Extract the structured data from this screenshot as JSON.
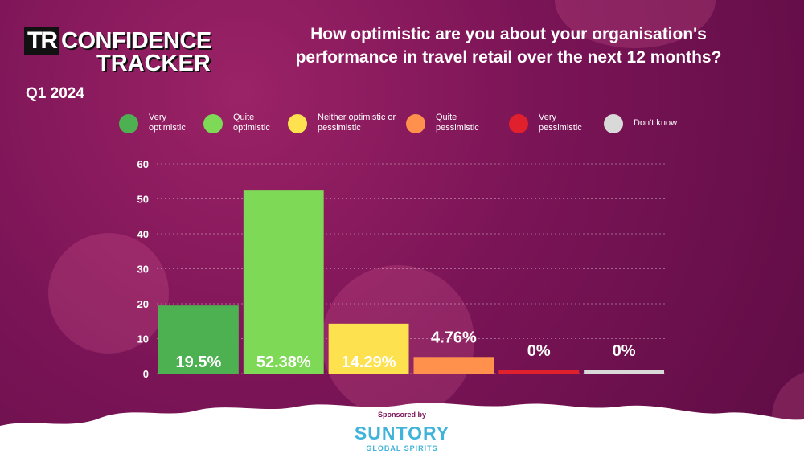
{
  "logo": {
    "prefix": "TR",
    "line1": "CONFIDENCE",
    "line2": "TRACKER"
  },
  "period": "Q1 2024",
  "chart_data": {
    "type": "bar",
    "title": "How optimistic are you about your organisation's performance in travel retail over the next 12 months?",
    "categories": [
      "Very optimistic",
      "Quite optimistic",
      "Neither optimistic or pessimistic",
      "Quite pessimistic",
      "Very pessimistic",
      "Don't know"
    ],
    "values": [
      19.5,
      52.38,
      14.29,
      4.76,
      0,
      0
    ],
    "value_labels": [
      "19.5%",
      "52.38%",
      "14.29%",
      "4.76%",
      "0%",
      "0%"
    ],
    "colors": [
      "#4db152",
      "#7ed957",
      "#fde14f",
      "#ff914d",
      "#e0202c",
      "#d9d9d9"
    ],
    "ylim": [
      0,
      60
    ],
    "yticks": [
      0,
      10,
      20,
      30,
      40,
      50,
      60
    ],
    "grid": true
  },
  "sponsor": {
    "label": "Sponsored by",
    "name": "SUNTORY",
    "tagline": "GLOBAL SPIRITS"
  }
}
